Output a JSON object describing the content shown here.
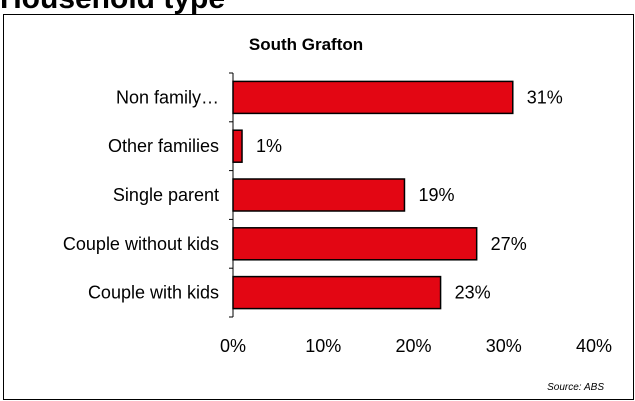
{
  "page": {
    "heading": "Household type"
  },
  "chart_data": {
    "type": "bar",
    "orientation": "horizontal",
    "title": "South Grafton",
    "categories": [
      "Non family…",
      "Other families",
      "Single parent",
      "Couple without kids",
      "Couple with kids"
    ],
    "values": [
      31,
      1,
      19,
      27,
      23
    ],
    "value_labels": [
      "31%",
      "1%",
      "19%",
      "27%",
      "23%"
    ],
    "xlim": [
      0,
      40
    ],
    "xticks": [
      0,
      10,
      20,
      30,
      40
    ],
    "xtick_labels": [
      "0%",
      "10%",
      "20%",
      "30%",
      "40%"
    ],
    "bar_color": "#e30613",
    "grid": false,
    "source": "Source:  ABS"
  }
}
